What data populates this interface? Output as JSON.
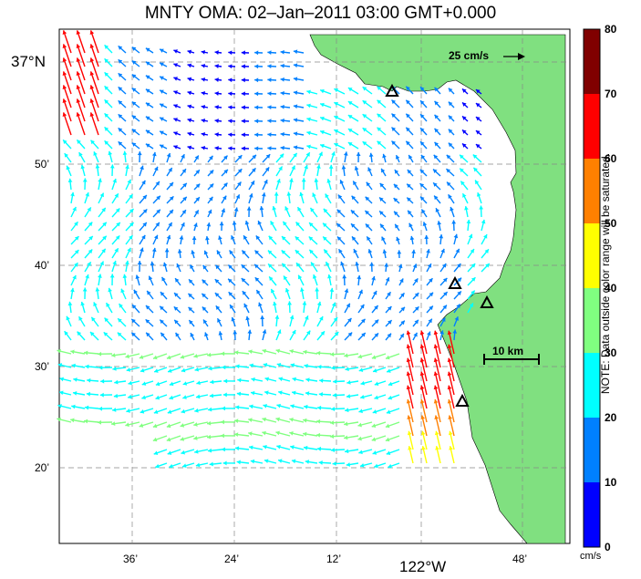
{
  "map": {
    "title": "MNTY OMA: 02–Jan–2011 03:00 GMT+0.000",
    "lat_labels": [
      "37°N",
      "50’",
      "40’",
      "30’",
      "20’"
    ],
    "lon_labels": [
      "36’",
      "24’",
      "12’",
      "122°W",
      "48’"
    ],
    "reference_arrow_label": "25 cm/s",
    "scale_bar_label": "10 km",
    "colorbar": {
      "ticks": [
        "80",
        "70",
        "60",
        "50",
        "40",
        "30",
        "20",
        "10",
        "0"
      ],
      "unit": "cm/s",
      "note": "NOTE: Data outside color range will be saturated.",
      "colors": [
        "#0000ff",
        "#0080ff",
        "#00ffff",
        "#80ff80",
        "#ffff00",
        "#ff8000",
        "#ff0000",
        "#800000"
      ]
    },
    "land_color": "#80e080",
    "station_markers": 4
  }
}
